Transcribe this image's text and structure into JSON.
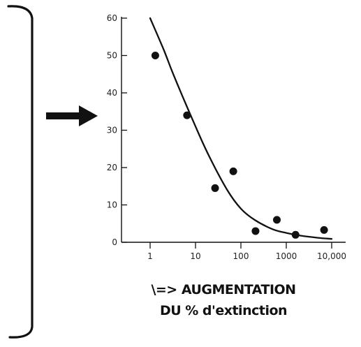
{
  "caption": {
    "line1": "\\=> AUGMENTATION",
    "line2": "DU % d'extinction"
  },
  "colors": {
    "ink": "#111111",
    "background": "#ffffff"
  },
  "decorations": {
    "bracket": "right-brace-bracket",
    "arrow": "right-arrow-icon"
  },
  "chart_data": {
    "type": "scatter",
    "title": "",
    "xlabel": "",
    "ylabel": "",
    "x_scale": "log",
    "xlim": [
      1,
      10000
    ],
    "ylim": [
      0,
      60
    ],
    "x_ticks": [
      1,
      10,
      100,
      1000,
      10000
    ],
    "x_tick_labels": [
      "1",
      "10",
      "100",
      "1000",
      "10,000"
    ],
    "y_ticks": [
      0,
      10,
      20,
      30,
      40,
      50,
      60
    ],
    "y_tick_labels": [
      "0",
      "10",
      "20",
      "30",
      "40",
      "50",
      "60"
    ],
    "grid": false,
    "legend": "none",
    "series": [
      {
        "kind": "points",
        "x": [
          1.3,
          6.5,
          27,
          68,
          210,
          620,
          1600,
          6800
        ],
        "y": [
          50,
          34,
          14.5,
          19,
          3,
          6,
          2,
          3.3
        ]
      },
      {
        "kind": "fitted-curve",
        "x": [
          1,
          2,
          3,
          5,
          10,
          20,
          50,
          100,
          200,
          500,
          1000,
          2000,
          5000,
          10000
        ],
        "y": [
          60,
          51.5,
          46,
          39.5,
          31,
          23,
          14,
          9,
          6,
          3.5,
          2.5,
          1.8,
          1.2,
          0.9
        ]
      }
    ]
  }
}
